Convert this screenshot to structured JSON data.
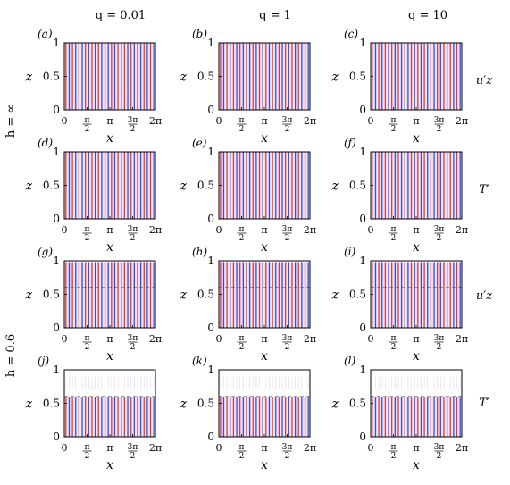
{
  "column_headers": [
    "q = 0.01",
    "q = 1",
    "q = 10"
  ],
  "row_group_labels": [
    "h = ∞",
    "h = 0.6"
  ],
  "row_field_labels": [
    "u′z",
    "T′",
    "u′z",
    "T′"
  ],
  "panel_labels": [
    "(a)",
    "(b)",
    "(c)",
    "(d)",
    "(e)",
    "(f)",
    "(g)",
    "(h)",
    "(i)",
    "(j)",
    "(k)",
    "(l)"
  ],
  "colors": {
    "positive": "#d0202a",
    "negative": "#2230d8",
    "interface": "#444444"
  },
  "chart_data": {
    "type": "heatmap",
    "layout": "4 rows × 3 columns of small panels",
    "xlabel": "x",
    "ylabel": "z",
    "xlim": [
      0,
      6.283
    ],
    "ylim": [
      0,
      1
    ],
    "xticks": [
      "0",
      "π/2",
      "π",
      "3π/2",
      "2π"
    ],
    "yticks": [
      "0",
      "0.5",
      "1"
    ],
    "columns": [
      "q = 0.01",
      "q = 1",
      "q = 10"
    ],
    "rows": [
      {
        "group": "h = ∞",
        "field": "u′z",
        "panels": [
          "(a)",
          "(b)",
          "(c)"
        ],
        "interface_z": null
      },
      {
        "group": "h = ∞",
        "field": "T′",
        "panels": [
          "(d)",
          "(e)",
          "(f)"
        ],
        "interface_z": null
      },
      {
        "group": "h = 0.6",
        "field": "u′z",
        "panels": [
          "(g)",
          "(h)",
          "(i)"
        ],
        "interface_z": 0.6
      },
      {
        "group": "h = 0.6",
        "field": "T′",
        "panels": [
          "(j)",
          "(k)",
          "(l)"
        ],
        "interface_z": 0.6
      }
    ],
    "description_of_marks": "alternating red/blue vertical stripes (periodic convection-cell eigenmodes in x), about 14 periods across 0–2π; dashed line marks interface at z = 0.6 in lower rows"
  }
}
